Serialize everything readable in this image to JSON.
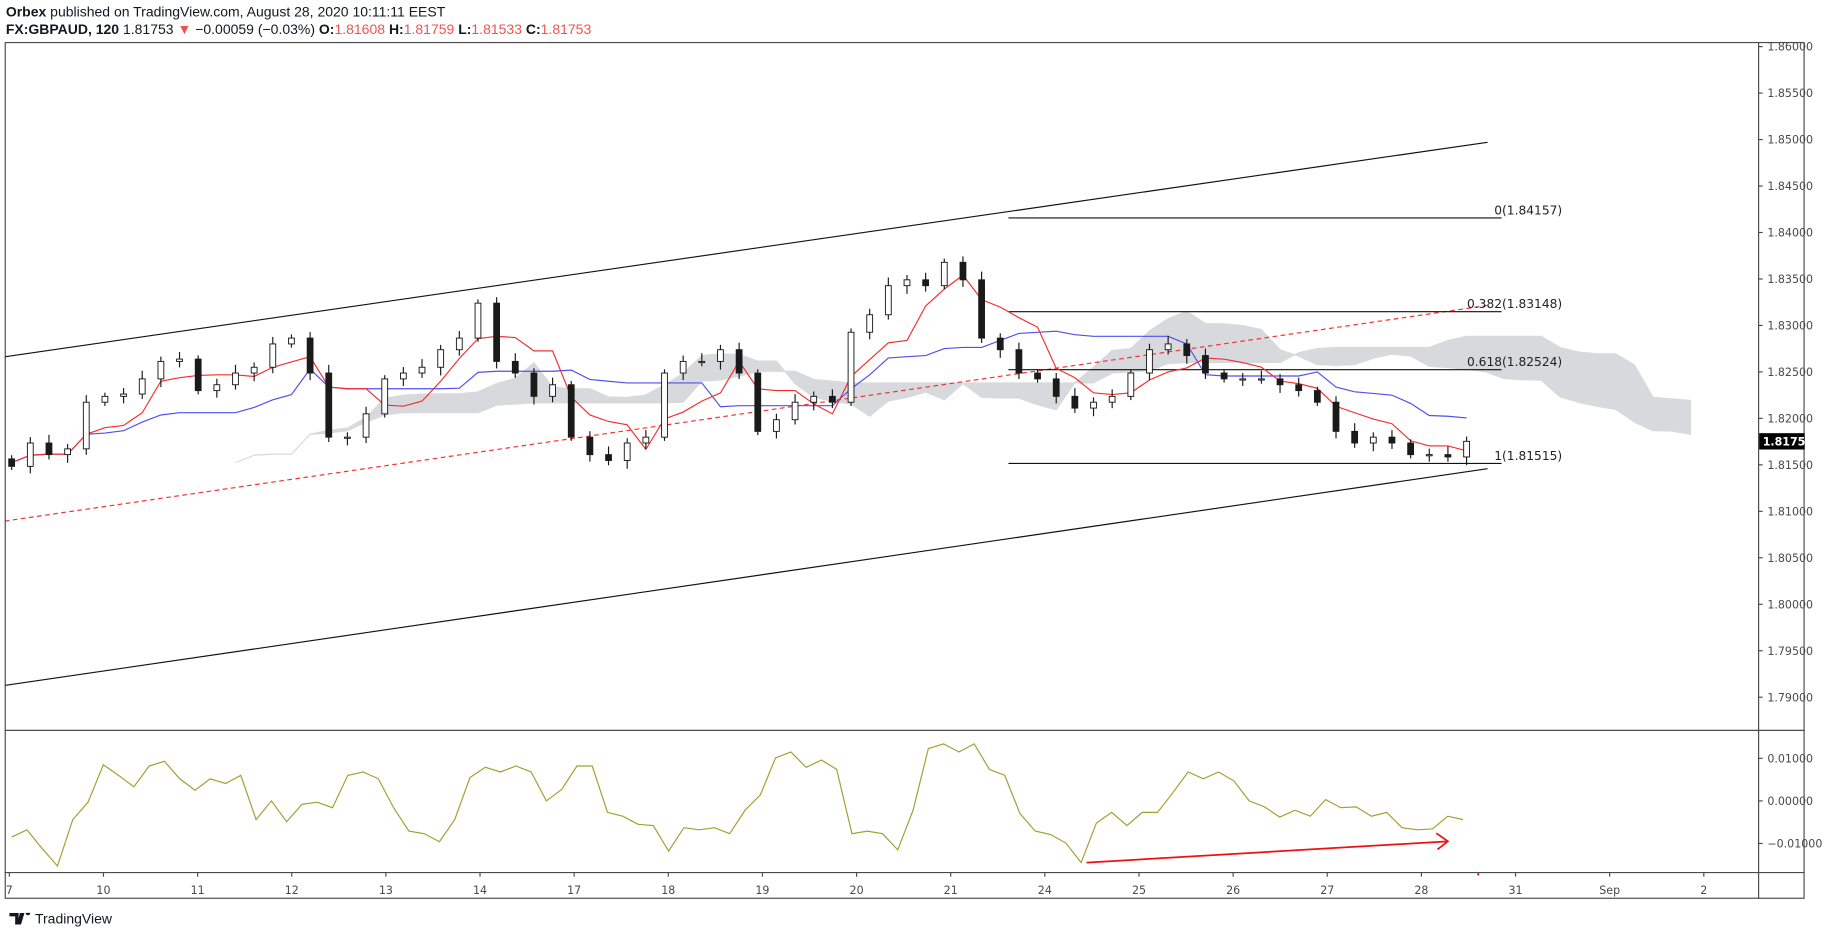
{
  "header": {
    "publisher": "Orbex",
    "published_text": "published on TradingView.com, August 28, 2020 10:11:11 EEST",
    "symbol": "FX:GBPAUD, 120",
    "last": "1.81753",
    "change": "−0.00059 (−0.03%)",
    "o_label": "O:",
    "o": "1.81608",
    "h_label": "H:",
    "h": "1.81759",
    "l_label": "L:",
    "l": "1.81533",
    "c_label": "C:",
    "c": "1.81753"
  },
  "footer": {
    "logo": "TradingView"
  },
  "colors": {
    "tenkan": "#f23030",
    "kijun": "#5050f0",
    "cloud": "#d8d9dc",
    "osc": "#a0a030",
    "arrow": "#f01010",
    "down": "#1a1a1a"
  },
  "chart_data": [
    {
      "type": "candlestick",
      "title": "FX:GBPAUD, 120",
      "ylim": [
        1.7865,
        1.8645
      ],
      "yticks": [
        "1.86000",
        "1.85500",
        "1.85000",
        "1.84500",
        "1.84000",
        "1.83500",
        "1.83000",
        "1.82500",
        "1.82000",
        "1.81500",
        "1.81000",
        "1.80500",
        "1.80000",
        "1.79500",
        "1.79000"
      ],
      "last_price_label": "1.81753",
      "closes": [
        1.81484,
        1.81735,
        1.8161,
        1.81672,
        1.82174,
        1.82237,
        1.82262,
        1.82425,
        1.82613,
        1.82638,
        1.82299,
        1.82362,
        1.82488,
        1.8255,
        1.82801,
        1.82864,
        1.82488,
        1.81798,
        1.81798,
        1.82049,
        1.82425,
        1.82488,
        1.8255,
        1.82739,
        1.82864,
        1.8324,
        1.82613,
        1.82488,
        1.82237,
        1.82362,
        1.81798,
        1.8161,
        1.81547,
        1.81735,
        1.81798,
        1.82488,
        1.82613,
        1.82613,
        1.82739,
        1.82488,
        1.8186,
        1.81986,
        1.82174,
        1.82237,
        1.82174,
        1.82927,
        1.83115,
        1.83428,
        1.83491,
        1.83428,
        1.83679,
        1.83491,
        1.82864,
        1.82739,
        1.82488,
        1.82425,
        1.82237,
        1.82111,
        1.82174,
        1.82237,
        1.82488,
        1.82739,
        1.82801,
        1.82676,
        1.82488,
        1.82425,
        1.82425,
        1.82425,
        1.82362,
        1.82299,
        1.82174,
        1.8186,
        1.81735,
        1.81798,
        1.81735,
        1.8161,
        1.8161,
        1.81585,
        1.81753
      ],
      "drawings": {
        "channel_upper": [
          1.82663,
          1.84971
        ],
        "channel_lower": [
          1.79126,
          1.81459
        ],
        "channel_mid_dashed": [
          1.80895,
          1.83215
        ],
        "fib": [
          {
            "label": "0(1.84157)",
            "price": 1.84157
          },
          {
            "label": "0.382(1.83148)",
            "price": 1.83148
          },
          {
            "label": "0.618(1.82524)",
            "price": 1.82524
          },
          {
            "label": "1(1.81515)",
            "price": 1.81515
          }
        ]
      }
    },
    {
      "type": "line",
      "name": "oscillator",
      "ylim": [
        -0.0175,
        0.0165
      ],
      "yticks": [
        "0.01000",
        "0.00000",
        "−0.01000"
      ],
      "values": [
        -0.0085,
        -0.0068,
        -0.0112,
        -0.0153,
        -0.0044,
        -0.0003,
        0.0085,
        0.006,
        0.0033,
        0.0082,
        0.0093,
        0.0052,
        0.0025,
        0.0052,
        0.0041,
        0.006,
        -0.0044,
        0,
        -0.0049,
        -0.0008,
        -0.0003,
        -0.0016,
        0.006,
        0.0068,
        0.0052,
        -0.0016,
        -0.0071,
        -0.0077,
        -0.0096,
        -0.0044,
        0.0055,
        0.0079,
        0.0068,
        0.0082,
        0.0068,
        0,
        0.0027,
        0.0082,
        0.0082,
        -0.0027,
        -0.0036,
        -0.0055,
        -0.0058,
        -0.0118,
        -0.0063,
        -0.0068,
        -0.0063,
        -0.0077,
        -0.0022,
        0.0014,
        0.0101,
        0.0115,
        0.0079,
        0.0096,
        0.0074,
        -0.0077,
        -0.0071,
        -0.0077,
        -0.0115,
        -0.0022,
        0.0123,
        0.0134,
        0.0115,
        0.0134,
        0.0074,
        0.006,
        -0.003,
        -0.0071,
        -0.0079,
        -0.0099,
        -0.0145,
        -0.0052,
        -0.0027,
        -0.0058,
        -0.0027,
        -0.0027,
        0.0019,
        0.0068,
        0.0052,
        0.0068,
        0.0047,
        0,
        -0.0014,
        -0.0038,
        -0.0022,
        -0.0036,
        0.0003,
        -0.0016,
        -0.0014,
        -0.0036,
        -0.0027,
        -0.0063,
        -0.0068,
        -0.0066,
        -0.0036,
        -0.0044
      ],
      "arrow": [
        -0.0145,
        -0.0095
      ]
    },
    {
      "type": "time_axis",
      "labels": [
        "7",
        "10",
        "11",
        "12",
        "13",
        "14",
        "17",
        "18",
        "19",
        "20",
        "21",
        "24",
        "25",
        "26",
        "27",
        "28",
        "31",
        "Sep",
        "2"
      ]
    }
  ]
}
